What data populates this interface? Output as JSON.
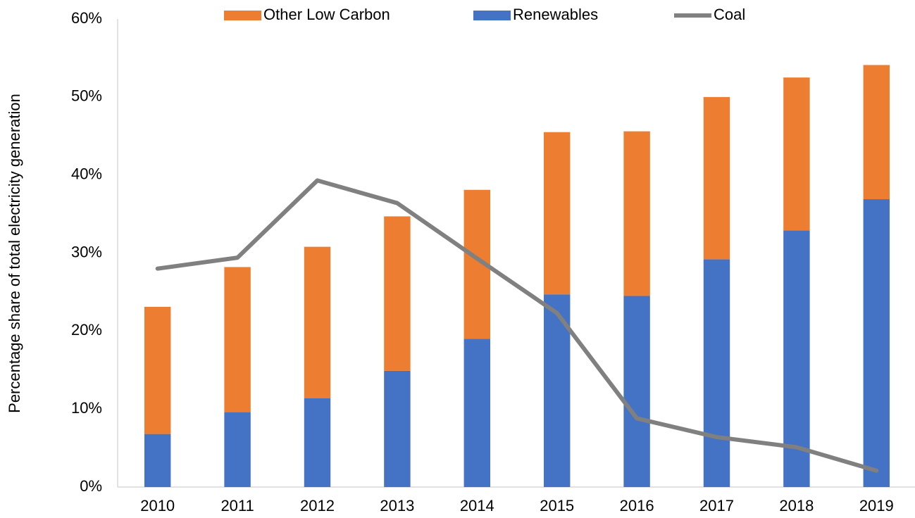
{
  "chart_data": {
    "type": "bar",
    "stacked": true,
    "y_axis_label": "Percentage share of total electricity generation",
    "categories": [
      "2010",
      "2011",
      "2012",
      "2013",
      "2014",
      "2015",
      "2016",
      "2017",
      "2018",
      "2019"
    ],
    "series": [
      {
        "name": "Other Low Carbon",
        "type": "bar",
        "color": "#ed7d31",
        "values": [
          16.3,
          18.6,
          19.4,
          19.8,
          19.1,
          20.8,
          21.1,
          20.8,
          19.6,
          17.2
        ]
      },
      {
        "name": "Renewables",
        "type": "bar",
        "color": "#4472c4",
        "values": [
          6.8,
          9.6,
          11.4,
          14.9,
          19.0,
          24.7,
          24.5,
          29.2,
          32.9,
          36.9
        ]
      },
      {
        "name": "Coal",
        "type": "line",
        "color": "#808080",
        "values": [
          28.0,
          29.4,
          39.3,
          36.4,
          29.3,
          22.3,
          8.8,
          6.4,
          5.1,
          2.1
        ]
      }
    ],
    "ylim": [
      0,
      60
    ],
    "yticks": [
      {
        "value": 0,
        "label": "0%"
      },
      {
        "value": 10,
        "label": "10%"
      },
      {
        "value": 20,
        "label": "20%"
      },
      {
        "value": 30,
        "label": "30%"
      },
      {
        "value": 40,
        "label": "40%"
      },
      {
        "value": 50,
        "label": "50%"
      },
      {
        "value": 60,
        "label": "60%"
      }
    ],
    "grid": false,
    "legend": "top"
  }
}
